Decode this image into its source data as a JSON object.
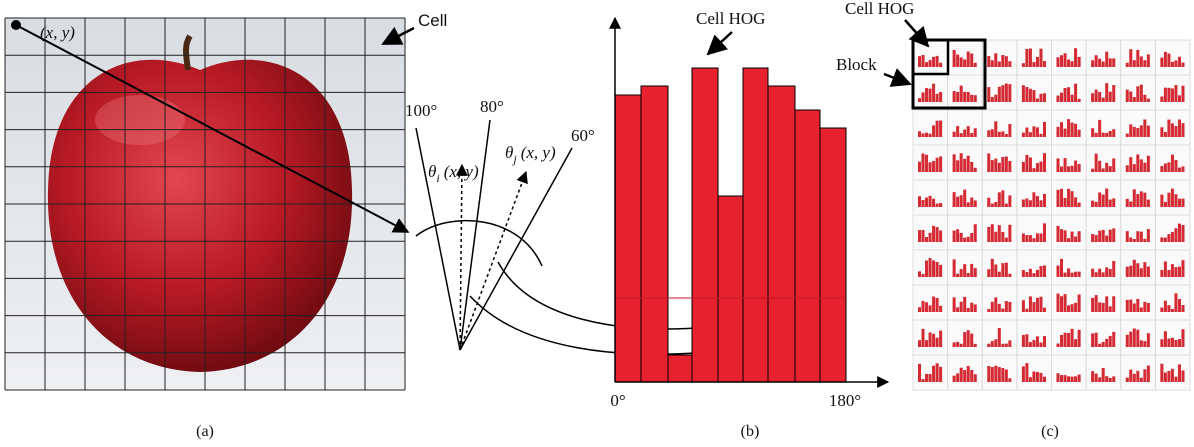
{
  "panel_a": {
    "point_label": "(x, y)",
    "cell_label": "Cell",
    "caption": "(a)"
  },
  "panel_mid": {
    "angle_100": "100°",
    "angle_80": "80°",
    "angle_60": "60°",
    "theta_i": {
      "symbol": "θ",
      "sub": "i",
      "args": "(x, y)"
    },
    "theta_j": {
      "symbol": "θ",
      "sub": "j",
      "args": "(x, y)"
    }
  },
  "panel_b": {
    "cell_hog_label": "Cell HOG",
    "x_start": "0°",
    "x_end": "180°",
    "caption": "(b)"
  },
  "panel_c": {
    "cell_hog_label": "Cell HOG",
    "block_label": "Block",
    "caption": "(c)"
  }
}
